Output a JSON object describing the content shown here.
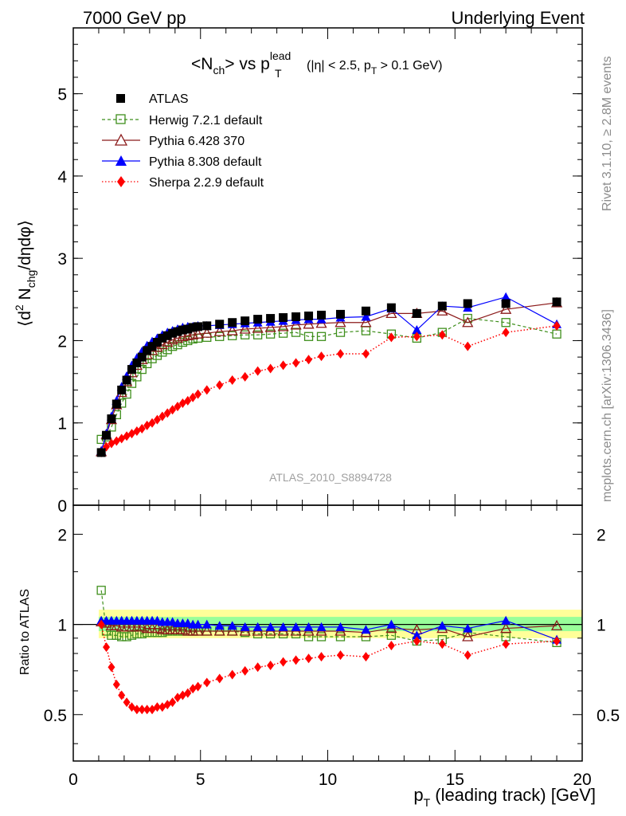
{
  "header": {
    "energy": "7000 GeV pp",
    "process": "Underlying Event"
  },
  "side_labels": {
    "rivet": "Rivet 3.1.10, ≥ 2.8M events",
    "mcplots": "mcplots.cern.ch [arXiv:1306.3436]"
  },
  "title": {
    "nch": "<N",
    "nch_sub": "ch",
    "vs": "> vs p",
    "lead_sup": "lead",
    "t_sub": "T",
    "cuts_a": "(|η| < 2.5, p",
    "cuts_sub": "T",
    "cuts_b": " > 0.1 GeV)"
  },
  "watermark": "ATLAS_2010_S8894728",
  "y_axis_main": {
    "open": "⟨d",
    "sup2": "2",
    "n": " N",
    "sub": "chg",
    "rest": "/dηdφ⟩"
  },
  "y_axis_ratio": "Ratio to ATLAS",
  "x_axis": {
    "p": "p",
    "sub": "T",
    "rest": " (leading track) [GeV]"
  },
  "colors": {
    "atlas": "#000000",
    "herwig": "#3f8f1c",
    "pythia6": "#8b1a1a",
    "pythia8": "#0000ff",
    "sherpa": "#ff0000",
    "band_yellow": "#ffff99",
    "band_green": "#99ff99"
  },
  "chart_data": [
    {
      "type": "scatter",
      "panel": "main",
      "xlim": [
        0,
        20
      ],
      "ylim": [
        0,
        5.8
      ],
      "yticks": [
        "1",
        "2",
        "3",
        "4",
        "5"
      ],
      "bottom_tick_partial": "0",
      "x": [
        1.1,
        1.3,
        1.5,
        1.7,
        1.9,
        2.1,
        2.3,
        2.5,
        2.7,
        2.9,
        3.1,
        3.3,
        3.5,
        3.7,
        3.9,
        4.1,
        4.3,
        4.5,
        4.7,
        4.9,
        5.25,
        5.75,
        6.25,
        6.75,
        7.25,
        7.75,
        8.25,
        8.75,
        9.25,
        9.75,
        10.5,
        11.5,
        12.5,
        13.5,
        14.5,
        15.5,
        17.0,
        19.0
      ],
      "series": [
        {
          "name": "ATLAS",
          "marker": "square",
          "values": [
            0.64,
            0.85,
            1.05,
            1.23,
            1.4,
            1.52,
            1.65,
            1.73,
            1.8,
            1.88,
            1.93,
            1.98,
            2.03,
            2.06,
            2.09,
            2.11,
            2.13,
            2.14,
            2.16,
            2.17,
            2.18,
            2.2,
            2.22,
            2.24,
            2.26,
            2.27,
            2.28,
            2.29,
            2.3,
            2.31,
            2.32,
            2.36,
            2.4,
            2.33,
            2.42,
            2.45,
            2.45,
            2.47
          ]
        },
        {
          "name": "Herwig 7.2.1 default",
          "marker": "open-square",
          "line": "dashed",
          "values": [
            0.8,
            0.83,
            0.95,
            1.1,
            1.24,
            1.35,
            1.48,
            1.56,
            1.65,
            1.72,
            1.78,
            1.82,
            1.86,
            1.89,
            1.93,
            1.95,
            1.98,
            2.0,
            2.02,
            2.03,
            2.04,
            2.05,
            2.06,
            2.07,
            2.07,
            2.08,
            2.09,
            2.1,
            2.05,
            2.05,
            2.1,
            2.12,
            2.08,
            2.03,
            2.1,
            2.27,
            2.22,
            2.08
          ]
        },
        {
          "name": "Pythia 6.428 370",
          "marker": "open-triangle",
          "line": "solid",
          "values": [
            0.65,
            0.86,
            1.04,
            1.22,
            1.37,
            1.5,
            1.61,
            1.7,
            1.77,
            1.83,
            1.88,
            1.92,
            1.95,
            1.98,
            2.01,
            2.03,
            2.05,
            2.06,
            2.07,
            2.08,
            2.09,
            2.11,
            2.12,
            2.14,
            2.15,
            2.16,
            2.17,
            2.19,
            2.2,
            2.21,
            2.22,
            2.22,
            2.33,
            2.33,
            2.36,
            2.22,
            2.38,
            2.46
          ]
        },
        {
          "name": "Pythia 8.308 default",
          "marker": "triangle",
          "line": "solid",
          "values": [
            0.66,
            0.87,
            1.08,
            1.27,
            1.44,
            1.57,
            1.7,
            1.79,
            1.87,
            1.94,
            1.99,
            2.03,
            2.07,
            2.1,
            2.12,
            2.14,
            2.16,
            2.17,
            2.17,
            2.18,
            2.18,
            2.19,
            2.2,
            2.21,
            2.22,
            2.23,
            2.24,
            2.25,
            2.26,
            2.26,
            2.28,
            2.29,
            2.39,
            2.13,
            2.42,
            2.4,
            2.53,
            2.2
          ]
        },
        {
          "name": "Sherpa 2.2.9 default",
          "marker": "diamond",
          "line": "dotted",
          "values": [
            0.64,
            0.71,
            0.75,
            0.78,
            0.81,
            0.84,
            0.87,
            0.9,
            0.93,
            0.97,
            1.0,
            1.04,
            1.08,
            1.12,
            1.16,
            1.2,
            1.24,
            1.27,
            1.31,
            1.35,
            1.4,
            1.46,
            1.52,
            1.56,
            1.63,
            1.66,
            1.7,
            1.73,
            1.77,
            1.81,
            1.84,
            1.84,
            2.04,
            2.05,
            2.07,
            1.93,
            2.1,
            2.18
          ]
        }
      ]
    },
    {
      "type": "scatter",
      "panel": "ratio",
      "xlim": [
        0,
        20
      ],
      "ylim": [
        0.35,
        2.5
      ],
      "yscale": "log",
      "yticks": [
        "0.5",
        "1",
        "2"
      ],
      "xticks": [
        "0",
        "5",
        "10",
        "15",
        "20"
      ],
      "band_yellow": {
        "x": [
          1,
          20
        ],
        "lower": 0.9,
        "upper": 1.12
      },
      "band_green": {
        "x": [
          1,
          20
        ],
        "lower": 0.95,
        "upper": 1.06
      },
      "series": [
        {
          "name": "Herwig 7.2.1 default",
          "values": [
            1.3,
            0.95,
            0.92,
            0.92,
            0.91,
            0.91,
            0.92,
            0.93,
            0.93,
            0.94,
            0.94,
            0.94,
            0.94,
            0.95,
            0.95,
            0.95,
            0.95,
            0.95,
            0.95,
            0.95,
            0.95,
            0.95,
            0.95,
            0.94,
            0.93,
            0.93,
            0.93,
            0.93,
            0.91,
            0.91,
            0.91,
            0.91,
            0.92,
            0.88,
            0.89,
            0.94,
            0.91,
            0.87
          ]
        },
        {
          "name": "Pythia 6.428 370",
          "values": [
            1.02,
            1.01,
            0.99,
            0.99,
            0.98,
            0.98,
            0.98,
            0.98,
            0.98,
            0.97,
            0.97,
            0.97,
            0.96,
            0.96,
            0.96,
            0.96,
            0.96,
            0.95,
            0.95,
            0.95,
            0.95,
            0.95,
            0.95,
            0.95,
            0.95,
            0.95,
            0.95,
            0.95,
            0.95,
            0.95,
            0.95,
            0.94,
            0.97,
            0.96,
            0.97,
            0.91,
            0.97,
            0.99
          ]
        },
        {
          "name": "Pythia 8.308 default",
          "values": [
            1.03,
            1.03,
            1.03,
            1.03,
            1.03,
            1.03,
            1.03,
            1.03,
            1.03,
            1.03,
            1.03,
            1.03,
            1.02,
            1.02,
            1.02,
            1.01,
            1.01,
            1.01,
            1.0,
            1.0,
            1.0,
            0.99,
            0.99,
            0.98,
            0.98,
            0.98,
            0.98,
            0.98,
            0.98,
            0.98,
            0.98,
            0.96,
            1.0,
            0.92,
            0.99,
            0.97,
            1.03,
            0.89
          ]
        },
        {
          "name": "Sherpa 2.2.9 default",
          "values": [
            1.0,
            0.84,
            0.72,
            0.63,
            0.58,
            0.55,
            0.53,
            0.52,
            0.52,
            0.52,
            0.52,
            0.53,
            0.53,
            0.54,
            0.55,
            0.57,
            0.58,
            0.59,
            0.61,
            0.62,
            0.64,
            0.66,
            0.68,
            0.7,
            0.72,
            0.73,
            0.75,
            0.76,
            0.77,
            0.78,
            0.79,
            0.78,
            0.85,
            0.88,
            0.86,
            0.79,
            0.86,
            0.88
          ]
        }
      ]
    }
  ]
}
